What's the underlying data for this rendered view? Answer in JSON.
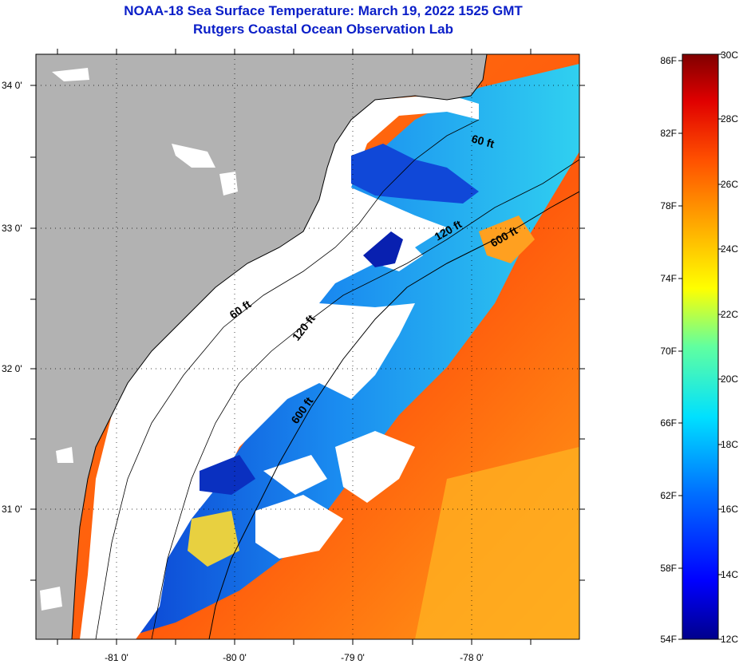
{
  "title": {
    "line1": "NOAA-18 Sea Surface Temperature:  March 19, 2022 1525 GMT",
    "line2": "Rutgers Coastal Ocean Observation Lab"
  },
  "map": {
    "lat_labels": [
      "34 0'",
      "33 0'",
      "32 0'",
      "31 0'"
    ],
    "lon_labels": [
      "-81 0'",
      "-80 0'",
      "-79 0'",
      "-78 0'"
    ],
    "isobath_labels": [
      "60 ft",
      "60 ft",
      "120 ft",
      "120 ft",
      "600 ft",
      "600 ft"
    ],
    "colors": {
      "land": "#b2b2b2",
      "cloud_mask": "#ffffff",
      "warm_water": "#ff6a10",
      "shelf_water": "#0a5ae6"
    }
  },
  "colorbar": {
    "f_labels": [
      "86F",
      "82F",
      "78F",
      "74F",
      "70F",
      "66F",
      "62F",
      "58F",
      "54F"
    ],
    "c_labels": [
      "30C",
      "28C",
      "26C",
      "24C",
      "22C",
      "20C",
      "18C",
      "16C",
      "14C",
      "12C"
    ],
    "colors": [
      "#00008c",
      "#0000ff",
      "#0070ff",
      "#00e0ff",
      "#60ffa0",
      "#ffff00",
      "#ffb000",
      "#ff5000",
      "#e00000",
      "#800000"
    ]
  }
}
